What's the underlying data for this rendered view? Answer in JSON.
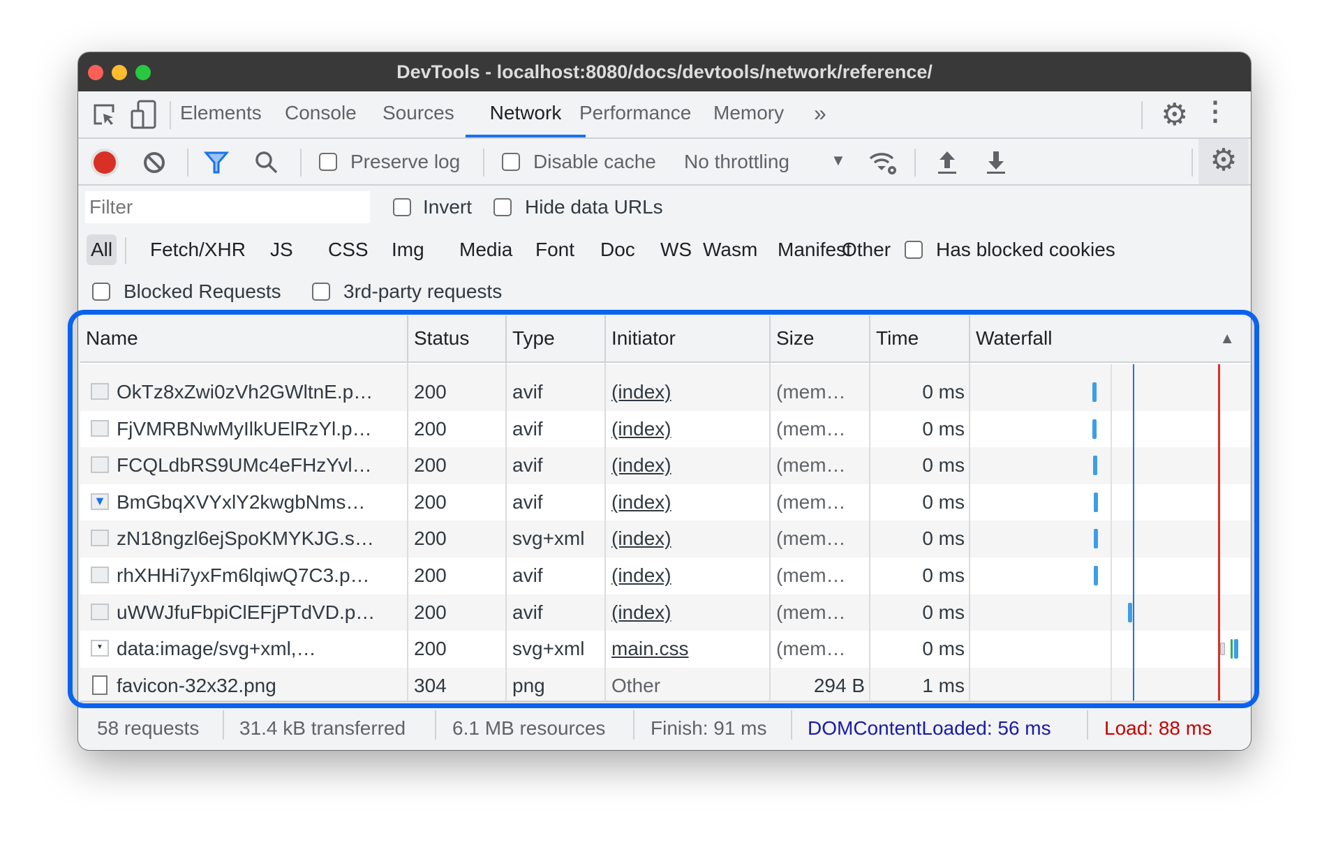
{
  "window": {
    "title": "DevTools - localhost:8080/docs/devtools/network/reference/"
  },
  "tabs": [
    {
      "label": "Elements"
    },
    {
      "label": "Console"
    },
    {
      "label": "Sources"
    },
    {
      "label": "Network",
      "active": true
    },
    {
      "label": "Performance"
    },
    {
      "label": "Memory"
    }
  ],
  "tabs_more": "»",
  "toolbar": {
    "preserve_log": "Preserve log",
    "disable_cache": "Disable cache",
    "throttling": "No throttling",
    "recording": true
  },
  "filter": {
    "placeholder": "Filter",
    "value": "",
    "invert": "Invert",
    "hide_data_urls": "Hide data URLs"
  },
  "types": [
    "All",
    "Fetch/XHR",
    "JS",
    "CSS",
    "Img",
    "Media",
    "Font",
    "Doc",
    "WS",
    "Wasm",
    "Manifest",
    "Other"
  ],
  "active_type": "All",
  "has_blocked_cookies": "Has blocked cookies",
  "blocked_requests": "Blocked Requests",
  "third_party": "3rd-party requests",
  "columns": [
    "Name",
    "Status",
    "Type",
    "Initiator",
    "Size",
    "Time",
    "Waterfall"
  ],
  "sort": "Waterfall ascending",
  "rows": [
    {
      "name": "OkTz8xZwi0zVh2GWltnE.p…",
      "status": "200",
      "type": "avif",
      "initiator": "(index)",
      "size": "(mem…",
      "time": "0 ms",
      "icon": "image-icon"
    },
    {
      "name": "FjVMRBNwMyIlkUElRzYl.p…",
      "status": "200",
      "type": "avif",
      "initiator": "(index)",
      "size": "(mem…",
      "time": "0 ms",
      "icon": "image-icon"
    },
    {
      "name": "FCQLdbRS9UMc4eFHzYvl…",
      "status": "200",
      "type": "avif",
      "initiator": "(index)",
      "size": "(mem…",
      "time": "0 ms",
      "icon": "image-icon"
    },
    {
      "name": "BmGbqXVYxlY2kwgbNms…",
      "status": "200",
      "type": "avif",
      "initiator": "(index)",
      "size": "(mem…",
      "time": "0 ms",
      "icon": "filter-image-icon"
    },
    {
      "name": "zN18ngzl6ejSpoKMYKJG.s…",
      "status": "200",
      "type": "svg+xml",
      "initiator": "(index)",
      "size": "(mem…",
      "time": "0 ms",
      "icon": "image-icon"
    },
    {
      "name": "rhXHHi7yxFm6lqiwQ7C3.p…",
      "status": "200",
      "type": "avif",
      "initiator": "(index)",
      "size": "(mem…",
      "time": "0 ms",
      "icon": "image-icon"
    },
    {
      "name": "uWWJfuFbpiClEFjPTdVD.p…",
      "status": "200",
      "type": "avif",
      "initiator": "(index)",
      "size": "(mem…",
      "time": "0 ms",
      "icon": "image-icon"
    },
    {
      "name": "data:image/svg+xml,…",
      "status": "200",
      "type": "svg+xml",
      "initiator": "main.css",
      "size": "(mem…",
      "time": "0 ms",
      "icon": "dropdown-image-icon"
    },
    {
      "name": "favicon-32x32.png",
      "status": "304",
      "type": "png",
      "initiator": "Other",
      "size": "294 B",
      "time": "1 ms",
      "icon": "document-icon"
    }
  ],
  "statusbar": {
    "requests": "58 requests",
    "transferred": "31.4 kB transferred",
    "resources": "6.1 MB resources",
    "finish": "Finish: 91 ms",
    "dcl": "DOMContentLoaded: 56 ms",
    "load": "Load: 88 ms"
  },
  "colors": {
    "accent": "#1a73e8",
    "dcl": "#1a1aa6",
    "load": "#c80000",
    "highlight_outline": "#0a63f0",
    "record": "#d93025"
  }
}
